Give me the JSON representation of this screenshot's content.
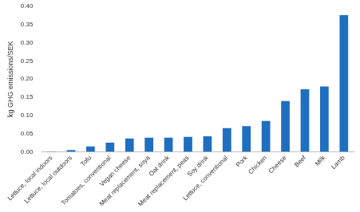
{
  "chart_data": {
    "type": "bar",
    "y_label": "kg GHG emissions/SEK",
    "categories": [
      "Lettuce, local indoors",
      "Lettuce, local outdoors",
      "Tofu",
      "Tomatoes, conventional",
      "Vegan cheese",
      "Meat replacement, soya",
      "Oat drink",
      "Meat replacement, peas",
      "Soy drink",
      "Lettuce, conventional",
      "Pork",
      "Chicken",
      "Cheese",
      "Beef",
      "Milk",
      "Lamb"
    ],
    "values": [
      0.001,
      0.005,
      0.015,
      0.025,
      0.037,
      0.039,
      0.039,
      0.041,
      0.043,
      0.065,
      0.071,
      0.085,
      0.14,
      0.172,
      0.18,
      0.376
    ],
    "color": "#1f6fc0",
    "ylim": [
      0,
      0.4
    ],
    "yticks": [
      {
        "value": 0,
        "label": "0.00"
      },
      {
        "value": 0.05,
        "label": "0.05"
      },
      {
        "value": 0.1,
        "label": "0.10"
      },
      {
        "value": 0.15,
        "label": "0.15"
      },
      {
        "value": 0.2,
        "label": "0.20"
      },
      {
        "value": 0.25,
        "label": "0.25"
      },
      {
        "value": 0.3,
        "label": "0.30"
      },
      {
        "value": 0.35,
        "label": "0.35"
      },
      {
        "value": 0.4,
        "label": "0.40"
      }
    ],
    "grid": false
  }
}
